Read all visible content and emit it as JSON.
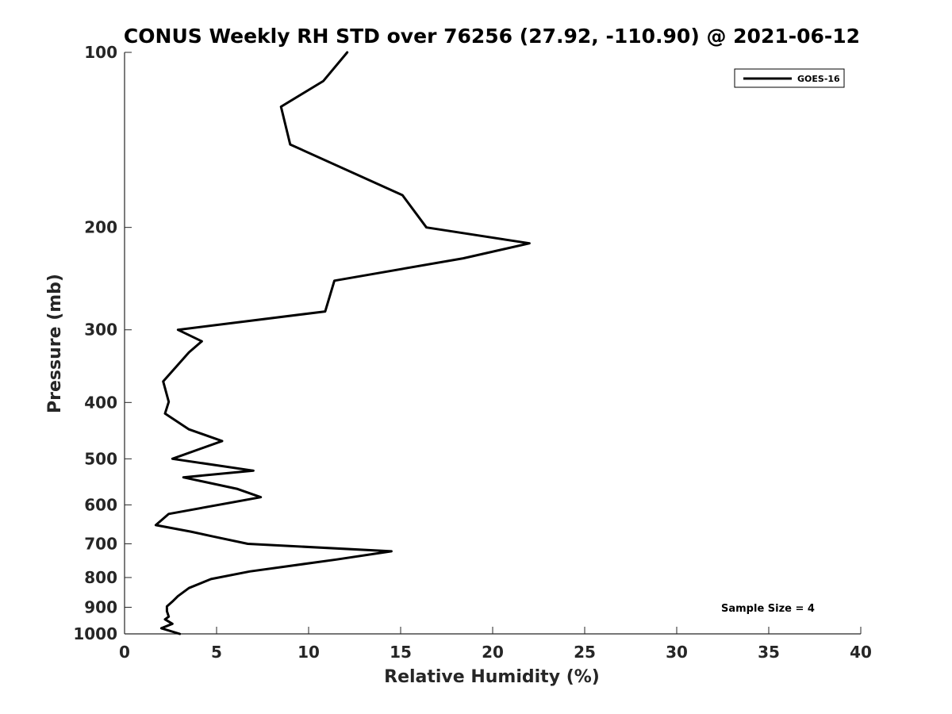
{
  "chart_data": {
    "type": "line",
    "title": "CONUS Weekly RH STD over 76256 (27.92, -110.90) @ 2021-06-12",
    "xlabel": "Relative Humidity (%)",
    "ylabel": "Pressure (mb)",
    "xlim": [
      0,
      40
    ],
    "ylim": [
      100,
      1000
    ],
    "yscale": "log",
    "y_reversed": true,
    "x_ticks": [
      0,
      5,
      10,
      15,
      20,
      25,
      30,
      35,
      40
    ],
    "y_ticks": [
      100,
      200,
      300,
      400,
      500,
      600,
      700,
      800,
      900,
      1000
    ],
    "grid": false,
    "legend_position": "top-right",
    "series": [
      {
        "name": "GOES-16",
        "color": "#000000",
        "x": [
          12.1,
          10.8,
          8.5,
          9.0,
          15.1,
          16.4,
          22.0,
          18.4,
          11.4,
          10.9,
          2.9,
          4.2,
          3.5,
          2.1,
          2.4,
          2.2,
          3.5,
          5.3,
          2.6,
          7.0,
          3.2,
          6.1,
          7.4,
          2.4,
          1.7,
          3.6,
          4.8,
          6.7,
          14.5,
          11.5,
          6.8,
          4.7,
          3.5,
          2.9,
          2.6,
          2.3,
          2.3,
          2.4,
          2.2,
          2.6,
          2.0,
          3.0
        ],
        "y": [
          100,
          112,
          124,
          144,
          176,
          200,
          213,
          226,
          247,
          279,
          300,
          314,
          328,
          368,
          399,
          418,
          445,
          466,
          500,
          524,
          538,
          563,
          582,
          622,
          650,
          667,
          680,
          700,
          721,
          745,
          781,
          805,
          834,
          861,
          880,
          897,
          914,
          934,
          944,
          961,
          978,
          1000
        ]
      }
    ],
    "annotations": [
      "Sample Size = 4"
    ]
  }
}
